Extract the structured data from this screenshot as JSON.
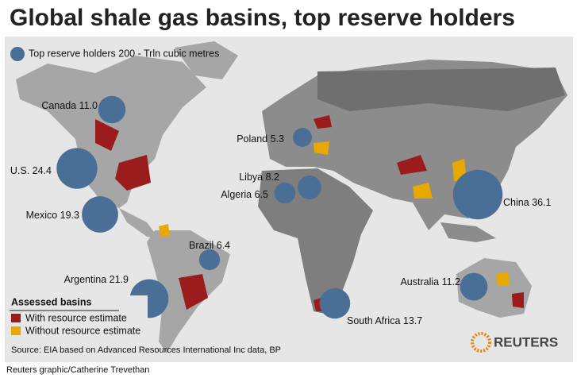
{
  "title": "Global shale gas basins, top reserve holders",
  "legend": "Top reserve holders 200 - Trln cubic metres",
  "reserve_holders": {
    "names": [
      "Canada",
      "U.S.",
      "Mexico",
      "Argentina",
      "Brazil",
      "Poland",
      "Libya",
      "Algeria",
      "China",
      "South Africa",
      "Australia"
    ],
    "values": [
      11.0,
      24.4,
      19.3,
      21.9,
      6.4,
      5.3,
      8.2,
      6.5,
      36.1,
      13.7,
      11.2
    ],
    "value_labels": [
      "11.0",
      "24.4",
      "19.3",
      "21.9",
      "6.4",
      "5.3",
      "8.2",
      "6.5",
      "36.1",
      "13.7",
      "11.2"
    ],
    "color": "#4a6f96"
  },
  "basins_legend": {
    "title": "Assessed basins",
    "items": [
      "With resource estimate",
      "Without resource estimate"
    ],
    "colors": [
      "#9b1c1c",
      "#e8a800"
    ]
  },
  "source": "Source: EIA based on Advanced Resources International Inc data, BP",
  "credit": "Reuters graphic/Catherine Trevethan",
  "logo": "REUTERS"
}
